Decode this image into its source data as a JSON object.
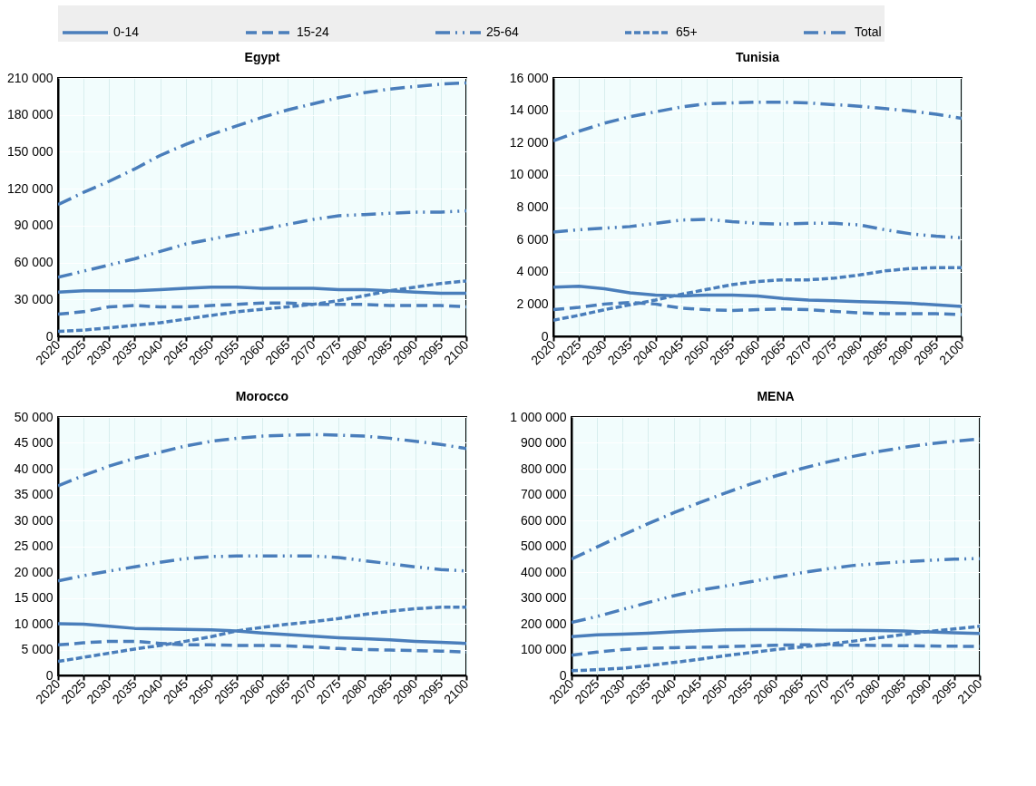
{
  "chart_data": [
    {
      "type": "line",
      "title": "Egypt",
      "x": [
        2020,
        2025,
        2030,
        2035,
        2040,
        2045,
        2050,
        2055,
        2060,
        2065,
        2070,
        2075,
        2080,
        2085,
        2090,
        2095,
        2100
      ],
      "xlim": [
        2020,
        2100
      ],
      "xticks": [
        2020,
        2025,
        2030,
        2035,
        2040,
        2045,
        2050,
        2055,
        2060,
        2065,
        2070,
        2075,
        2080,
        2085,
        2090,
        2095,
        2100
      ],
      "ylim": [
        0,
        210000
      ],
      "yticks": [
        0,
        30000,
        60000,
        90000,
        120000,
        150000,
        180000,
        210000
      ],
      "grid": true,
      "legend": "top",
      "series": [
        {
          "name": "0-14",
          "color": "#4a7ebb",
          "line_style": "solid",
          "values": [
            36000,
            37000,
            37000,
            37000,
            38000,
            39000,
            40000,
            40000,
            39000,
            39000,
            39000,
            38000,
            38000,
            37000,
            36000,
            35000,
            35000
          ]
        },
        {
          "name": "15-24",
          "color": "#4a7ebb",
          "line_style": "dashed",
          "values": [
            18000,
            20000,
            24000,
            25000,
            24000,
            24000,
            25000,
            26000,
            27000,
            27000,
            26000,
            26000,
            26000,
            25000,
            25000,
            25000,
            24000
          ]
        },
        {
          "name": "25-64",
          "color": "#4a7ebb",
          "line_style": "dashdotdot",
          "values": [
            48000,
            53000,
            58000,
            63000,
            69000,
            75000,
            79000,
            83000,
            87000,
            91000,
            95000,
            98000,
            99000,
            100000,
            101000,
            101000,
            102000
          ]
        },
        {
          "name": "65+",
          "color": "#4a7ebb",
          "line_style": "dotted",
          "values": [
            4000,
            5000,
            7000,
            9000,
            11000,
            14000,
            17000,
            20000,
            22000,
            24000,
            26000,
            29000,
            33000,
            37000,
            40000,
            43000,
            45000
          ]
        },
        {
          "name": "Total",
          "color": "#4a7ebb",
          "line_style": "dashdot",
          "values": [
            107000,
            117000,
            126000,
            136000,
            147000,
            156000,
            164000,
            171000,
            178000,
            184000,
            189000,
            194000,
            198000,
            201000,
            203000,
            205000,
            206000
          ]
        }
      ]
    },
    {
      "type": "line",
      "title": "Tunisia",
      "x": [
        2020,
        2025,
        2030,
        2035,
        2040,
        2045,
        2050,
        2055,
        2060,
        2065,
        2070,
        2075,
        2080,
        2085,
        2090,
        2095,
        2100
      ],
      "xlim": [
        2020,
        2100
      ],
      "xticks": [
        2020,
        2025,
        2030,
        2035,
        2040,
        2045,
        2050,
        2055,
        2060,
        2065,
        2070,
        2075,
        2080,
        2085,
        2090,
        2095,
        2100
      ],
      "ylim": [
        0,
        16000
      ],
      "yticks": [
        0,
        2000,
        4000,
        6000,
        8000,
        10000,
        12000,
        14000,
        16000
      ],
      "grid": true,
      "series": [
        {
          "name": "0-14",
          "color": "#4a7ebb",
          "line_style": "solid",
          "values": [
            3050,
            3100,
            2950,
            2700,
            2550,
            2500,
            2550,
            2550,
            2500,
            2350,
            2250,
            2200,
            2150,
            2100,
            2050,
            1950,
            1850
          ]
        },
        {
          "name": "15-24",
          "color": "#4a7ebb",
          "line_style": "dashed",
          "values": [
            1650,
            1800,
            2000,
            2100,
            2000,
            1750,
            1650,
            1600,
            1650,
            1700,
            1650,
            1550,
            1450,
            1400,
            1400,
            1400,
            1350
          ]
        },
        {
          "name": "25-64",
          "color": "#4a7ebb",
          "line_style": "dashdotdot",
          "values": [
            6450,
            6600,
            6700,
            6800,
            7000,
            7200,
            7250,
            7100,
            7000,
            6950,
            7000,
            7000,
            6900,
            6600,
            6350,
            6200,
            6100
          ]
        },
        {
          "name": "65+",
          "color": "#4a7ebb",
          "line_style": "dotted",
          "values": [
            1000,
            1300,
            1650,
            1950,
            2250,
            2600,
            2900,
            3200,
            3400,
            3500,
            3500,
            3600,
            3800,
            4050,
            4200,
            4250,
            4250
          ]
        },
        {
          "name": "Total",
          "color": "#4a7ebb",
          "line_style": "dashdot",
          "values": [
            12100,
            12700,
            13200,
            13600,
            13900,
            14200,
            14400,
            14450,
            14500,
            14500,
            14450,
            14350,
            14250,
            14100,
            13950,
            13750,
            13500
          ]
        }
      ]
    },
    {
      "type": "line",
      "title": "Morocco",
      "x": [
        2020,
        2025,
        2030,
        2035,
        2040,
        2045,
        2050,
        2055,
        2060,
        2065,
        2070,
        2075,
        2080,
        2085,
        2090,
        2095,
        2100
      ],
      "xlim": [
        2020,
        2100
      ],
      "xticks": [
        2020,
        2025,
        2030,
        2035,
        2040,
        2045,
        2050,
        2055,
        2060,
        2065,
        2070,
        2075,
        2080,
        2085,
        2090,
        2095,
        2100
      ],
      "ylim": [
        0,
        50000
      ],
      "yticks": [
        0,
        5000,
        10000,
        15000,
        20000,
        25000,
        30000,
        35000,
        40000,
        45000,
        50000
      ],
      "grid": true,
      "series": [
        {
          "name": "0-14",
          "color": "#4a7ebb",
          "line_style": "solid",
          "values": [
            10000,
            9900,
            9500,
            9100,
            9000,
            8900,
            8800,
            8600,
            8200,
            7900,
            7600,
            7300,
            7100,
            6900,
            6600,
            6400,
            6200
          ]
        },
        {
          "name": "15-24",
          "color": "#4a7ebb",
          "line_style": "dashed",
          "values": [
            5900,
            6300,
            6600,
            6600,
            6200,
            5900,
            5900,
            5800,
            5800,
            5700,
            5500,
            5200,
            5000,
            4900,
            4800,
            4700,
            4500
          ]
        },
        {
          "name": "25-64",
          "color": "#4a7ebb",
          "line_style": "dashdotdot",
          "values": [
            18300,
            19300,
            20200,
            21000,
            21900,
            22600,
            23000,
            23100,
            23100,
            23100,
            23100,
            22800,
            22200,
            21600,
            21000,
            20500,
            20200
          ]
        },
        {
          "name": "65+",
          "color": "#4a7ebb",
          "line_style": "dotted",
          "values": [
            2700,
            3500,
            4300,
            5100,
            5800,
            6600,
            7500,
            8600,
            9300,
            9900,
            10400,
            11000,
            11800,
            12400,
            12900,
            13200,
            13200
          ]
        },
        {
          "name": "Total",
          "color": "#4a7ebb",
          "line_style": "dashdot",
          "values": [
            36700,
            38700,
            40500,
            42000,
            43200,
            44400,
            45300,
            45900,
            46300,
            46500,
            46600,
            46500,
            46300,
            45900,
            45300,
            44700,
            43900
          ]
        }
      ]
    },
    {
      "type": "line",
      "title": "MENA",
      "x": [
        2020,
        2025,
        2030,
        2035,
        2040,
        2045,
        2050,
        2055,
        2060,
        2065,
        2070,
        2075,
        2080,
        2085,
        2090,
        2095,
        2100
      ],
      "xlim": [
        2020,
        2100
      ],
      "xticks": [
        2020,
        2025,
        2030,
        2035,
        2040,
        2045,
        2050,
        2055,
        2060,
        2065,
        2070,
        2075,
        2080,
        2085,
        2090,
        2095,
        2100
      ],
      "ylim": [
        0,
        1000000
      ],
      "yticks": [
        0,
        100000,
        200000,
        300000,
        400000,
        500000,
        600000,
        700000,
        800000,
        900000,
        1000000
      ],
      "grid": true,
      "series": [
        {
          "name": "0-14",
          "color": "#4a7ebb",
          "line_style": "solid",
          "values": [
            150000,
            157000,
            160000,
            163000,
            168000,
            173000,
            176000,
            177000,
            177000,
            176000,
            175000,
            175000,
            174000,
            172000,
            168000,
            165000,
            162000
          ]
        },
        {
          "name": "15-24",
          "color": "#4a7ebb",
          "line_style": "dashed",
          "values": [
            78000,
            90000,
            100000,
            105000,
            107000,
            109000,
            111000,
            114000,
            117000,
            118000,
            118000,
            117000,
            116000,
            115000,
            114000,
            113000,
            112000
          ]
        },
        {
          "name": "25-64",
          "color": "#4a7ebb",
          "line_style": "dashdotdot",
          "values": [
            205000,
            228000,
            255000,
            282000,
            308000,
            330000,
            345000,
            362000,
            380000,
            397000,
            412000,
            425000,
            433000,
            440000,
            445000,
            450000,
            452000
          ]
        },
        {
          "name": "65+",
          "color": "#4a7ebb",
          "line_style": "dotted",
          "values": [
            18000,
            22000,
            28000,
            38000,
            50000,
            62000,
            76000,
            88000,
            100000,
            110000,
            120000,
            132000,
            145000,
            158000,
            170000,
            180000,
            190000
          ]
        },
        {
          "name": "Total",
          "color": "#4a7ebb",
          "line_style": "dashdot",
          "values": [
            450000,
            497000,
            543000,
            587000,
            629000,
            668000,
            705000,
            740000,
            772000,
            800000,
            825000,
            847000,
            866000,
            882000,
            896000,
            906000,
            915000
          ]
        }
      ]
    }
  ]
}
